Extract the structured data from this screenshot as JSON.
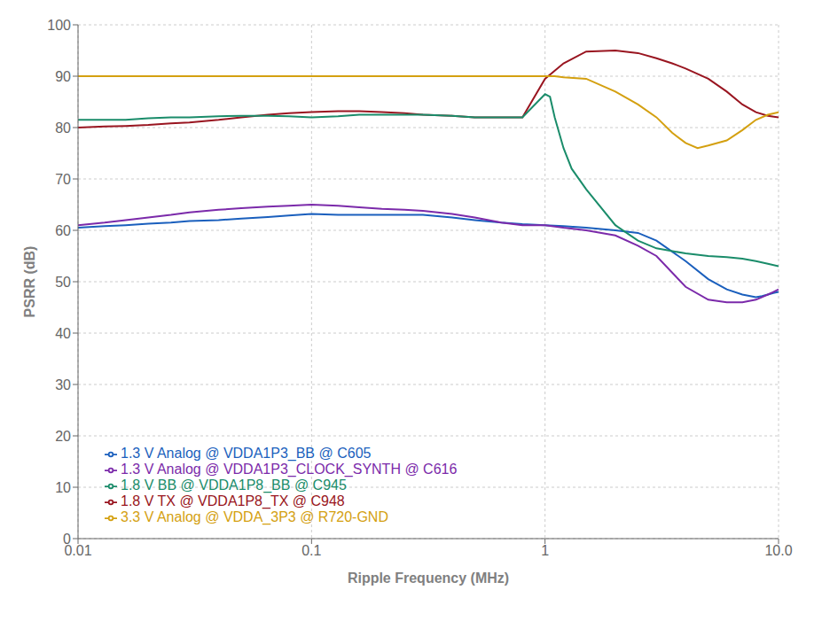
{
  "chart_data": {
    "type": "line",
    "xlabel": "Ripple Frequency (MHz)",
    "ylabel": "PSRR (dB)",
    "log": "x",
    "xlim": [
      0.01,
      10.0
    ],
    "ylim": [
      0,
      100
    ],
    "xticks": [
      0.01,
      0.1,
      1,
      {
        "value": 10,
        "label": "10.0"
      }
    ],
    "yticks": [
      0,
      10,
      20,
      30,
      40,
      50,
      60,
      70,
      80,
      90,
      100
    ],
    "grid": true,
    "legend": "lower left",
    "series": [
      {
        "name": "1.3 V Analog @ VDDA1P3_BB @ C605",
        "color": "#1a5fbd",
        "x": [
          0.01,
          0.013,
          0.016,
          0.02,
          0.025,
          0.03,
          0.04,
          0.05,
          0.065,
          0.08,
          0.1,
          0.13,
          0.16,
          0.2,
          0.25,
          0.3,
          0.4,
          0.5,
          0.65,
          0.8,
          1.0,
          1.2,
          1.5,
          2.0,
          2.5,
          3.0,
          4.0,
          5.0,
          6.0,
          7.0,
          8.0,
          8.5,
          9.0,
          9.5,
          10.0
        ],
        "values": [
          60.5,
          60.8,
          61.0,
          61.3,
          61.5,
          61.8,
          62.0,
          62.3,
          62.6,
          62.9,
          63.2,
          63.0,
          63.0,
          63.0,
          63.0,
          63.0,
          62.5,
          62.0,
          61.5,
          61.2,
          61.0,
          60.8,
          60.5,
          60.0,
          59.5,
          58.0,
          54.0,
          50.5,
          48.5,
          47.5,
          47.0,
          47.2,
          47.5,
          47.8,
          48.0
        ]
      },
      {
        "name": "1.3 V Analog @ VDDA1P3_CLOCK_SYNTH @ C616",
        "color": "#7b2aaa",
        "x": [
          0.01,
          0.013,
          0.016,
          0.02,
          0.025,
          0.03,
          0.04,
          0.05,
          0.065,
          0.08,
          0.1,
          0.13,
          0.16,
          0.2,
          0.25,
          0.3,
          0.4,
          0.5,
          0.65,
          0.8,
          1.0,
          1.2,
          1.5,
          2.0,
          2.5,
          3.0,
          4.0,
          5.0,
          6.0,
          7.0,
          8.0,
          8.5,
          9.0,
          9.5,
          10.0
        ],
        "values": [
          61.0,
          61.5,
          62.0,
          62.5,
          63.0,
          63.5,
          64.0,
          64.3,
          64.6,
          64.8,
          65.0,
          64.8,
          64.5,
          64.2,
          64.0,
          63.8,
          63.2,
          62.5,
          61.5,
          61.0,
          61.0,
          60.5,
          60.0,
          59.0,
          57.0,
          55.0,
          49.0,
          46.5,
          46.0,
          46.0,
          46.5,
          47.0,
          47.5,
          48.0,
          48.5
        ]
      },
      {
        "name": "1.8 V TX @ VDDA1P8_TX @ C948",
        "color": "#991520",
        "x": [
          0.01,
          0.013,
          0.016,
          0.02,
          0.025,
          0.03,
          0.04,
          0.05,
          0.065,
          0.08,
          0.1,
          0.13,
          0.16,
          0.2,
          0.25,
          0.3,
          0.4,
          0.5,
          0.65,
          0.8,
          1.0,
          1.2,
          1.5,
          2.0,
          2.5,
          3.0,
          3.5,
          4.0,
          5.0,
          6.0,
          7.0,
          8.0,
          9.0,
          10.0
        ],
        "values": [
          80.0,
          80.2,
          80.3,
          80.5,
          80.8,
          81.0,
          81.5,
          82.0,
          82.5,
          82.8,
          83.0,
          83.2,
          83.2,
          83.0,
          82.8,
          82.5,
          82.3,
          82.0,
          82.0,
          82.0,
          89.5,
          92.5,
          94.8,
          95.0,
          94.5,
          93.5,
          92.5,
          91.5,
          89.5,
          87.0,
          84.5,
          83.0,
          82.3,
          82.0
        ]
      },
      {
        "name": "1.8 V BB @ VDDA1P8_BB @ C945",
        "color": "#1a8c6a",
        "x": [
          0.01,
          0.013,
          0.016,
          0.02,
          0.025,
          0.03,
          0.04,
          0.05,
          0.065,
          0.08,
          0.1,
          0.13,
          0.16,
          0.2,
          0.25,
          0.3,
          0.4,
          0.5,
          0.65,
          0.8,
          1.0,
          1.05,
          1.1,
          1.2,
          1.3,
          1.5,
          2.0,
          2.5,
          3.0,
          4.0,
          5.0,
          6.0,
          7.0,
          8.0,
          9.0,
          10.0
        ],
        "values": [
          81.5,
          81.5,
          81.5,
          81.8,
          82.0,
          82.0,
          82.2,
          82.3,
          82.3,
          82.2,
          82.0,
          82.2,
          82.5,
          82.5,
          82.5,
          82.5,
          82.3,
          82.0,
          82.0,
          82.0,
          86.5,
          86.0,
          82.0,
          76.0,
          72.0,
          68.0,
          61.0,
          58.0,
          56.5,
          55.5,
          55.0,
          54.8,
          54.5,
          54.0,
          53.5,
          53.0
        ]
      },
      {
        "name": "3.3 V Analog @ VDDA_3P3 @ R720-GND",
        "color": "#d4a010",
        "x": [
          0.01,
          0.02,
          0.03,
          0.05,
          0.07,
          0.1,
          0.2,
          0.3,
          0.5,
          0.7,
          1.0,
          1.1,
          1.2,
          1.5,
          2.0,
          2.5,
          3.0,
          3.5,
          4.0,
          4.5,
          5.0,
          6.0,
          7.0,
          8.0,
          9.0,
          10.0
        ],
        "values": [
          90.0,
          90.0,
          90.0,
          90.0,
          90.0,
          90.0,
          90.0,
          90.0,
          90.0,
          90.0,
          90.0,
          90.0,
          89.8,
          89.5,
          87.0,
          84.5,
          82.0,
          79.0,
          77.0,
          76.0,
          76.5,
          77.5,
          79.5,
          81.5,
          82.5,
          83.0
        ]
      }
    ]
  }
}
